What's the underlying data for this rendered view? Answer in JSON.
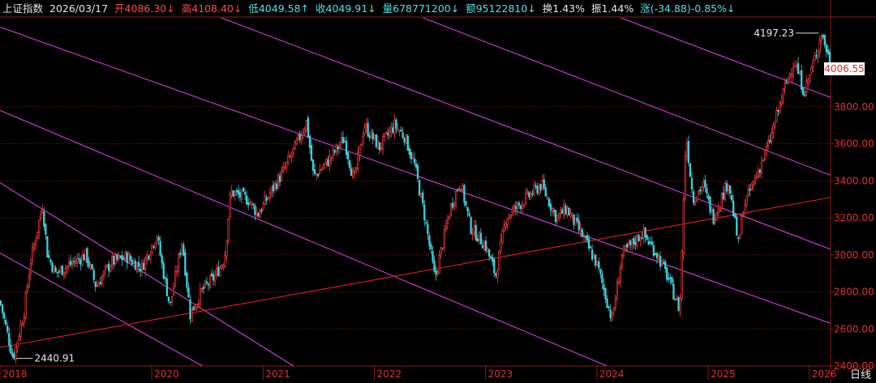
{
  "header": {
    "title": "上证指数",
    "date": "2026/03/17",
    "open": "开4086.30↓",
    "high": "高4108.40↓",
    "low": "低4049.58↑",
    "close": "收4049.91↓",
    "volume": "量678771200↓",
    "amount": "额95122810↓",
    "turnover": "换1.43%",
    "amplitude": "振1.44%",
    "change": "涨(-34.88)-0.85%↓"
  },
  "period_label": "日线",
  "current_price_label": "4006.55",
  "colors": {
    "up": "#ff3c3c",
    "down": "#3fd0dc",
    "channel": "#d040d8",
    "trendline": "#e02020",
    "grid": "#7a1818",
    "axis": "#8a1c1c"
  },
  "chart_data": {
    "type": "candlestick",
    "title": "上证指数",
    "period": "日线",
    "x_labels": [
      "2018",
      "2020",
      "2021",
      "2022",
      "2023",
      "2024",
      "2025",
      "2026"
    ],
    "x_years": [
      2018.0,
      2019.5,
      2020.6,
      2021.7,
      2022.8,
      2023.9,
      2025.0,
      2026.0
    ],
    "y_ticks": [
      2400.0,
      2600.0,
      2800.0,
      3000.0,
      3200.0,
      3400.0,
      3600.0,
      3800.0
    ],
    "ylim": [
      2400,
      4280
    ],
    "xlim": [
      2018.0,
      2026.21
    ],
    "last_price": 4006.55,
    "annotations": [
      {
        "text": "2440.91",
        "x": 2018.1,
        "y": 2440.91,
        "kind": "low"
      },
      {
        "text": "4197.23",
        "x": 2025.9,
        "y": 4197.23,
        "kind": "high"
      }
    ],
    "price_path": [
      [
        2018.0,
        2750
      ],
      [
        2018.13,
        2441
      ],
      [
        2018.24,
        2700
      ],
      [
        2018.3,
        2960
      ],
      [
        2018.42,
        3270
      ],
      [
        2018.47,
        3000
      ],
      [
        2018.55,
        2900
      ],
      [
        2018.7,
        2950
      ],
      [
        2018.85,
        3000
      ],
      [
        2018.95,
        2830
      ],
      [
        2019.1,
        2960
      ],
      [
        2019.25,
        2990
      ],
      [
        2019.4,
        2930
      ],
      [
        2019.55,
        3110
      ],
      [
        2019.6,
        2950
      ],
      [
        2019.68,
        2720
      ],
      [
        2019.8,
        3080
      ],
      [
        2019.88,
        2680
      ],
      [
        2020.0,
        2810
      ],
      [
        2020.12,
        2880
      ],
      [
        2020.22,
        2980
      ],
      [
        2020.28,
        3340
      ],
      [
        2020.45,
        3300
      ],
      [
        2020.55,
        3220
      ],
      [
        2020.7,
        3360
      ],
      [
        2020.8,
        3450
      ],
      [
        2020.95,
        3620
      ],
      [
        2021.03,
        3720
      ],
      [
        2021.1,
        3420
      ],
      [
        2021.25,
        3510
      ],
      [
        2021.4,
        3630
      ],
      [
        2021.5,
        3400
      ],
      [
        2021.6,
        3700
      ],
      [
        2021.75,
        3580
      ],
      [
        2021.9,
        3700
      ],
      [
        2022.0,
        3640
      ],
      [
        2022.1,
        3480
      ],
      [
        2022.2,
        3200
      ],
      [
        2022.3,
        2870
      ],
      [
        2022.45,
        3250
      ],
      [
        2022.55,
        3400
      ],
      [
        2022.65,
        3150
      ],
      [
        2022.8,
        3050
      ],
      [
        2022.9,
        2890
      ],
      [
        2023.0,
        3200
      ],
      [
        2023.15,
        3280
      ],
      [
        2023.35,
        3380
      ],
      [
        2023.5,
        3200
      ],
      [
        2023.6,
        3250
      ],
      [
        2023.75,
        3110
      ],
      [
        2023.9,
        2950
      ],
      [
        2024.05,
        2650
      ],
      [
        2024.15,
        3000
      ],
      [
        2024.35,
        3120
      ],
      [
        2024.5,
        3000
      ],
      [
        2024.6,
        2880
      ],
      [
        2024.72,
        2700
      ],
      [
        2024.78,
        3660
      ],
      [
        2024.85,
        3300
      ],
      [
        2024.95,
        3380
      ],
      [
        2025.05,
        3200
      ],
      [
        2025.2,
        3400
      ],
      [
        2025.3,
        3050
      ],
      [
        2025.35,
        3260
      ],
      [
        2025.5,
        3460
      ],
      [
        2025.6,
        3600
      ],
      [
        2025.75,
        3890
      ],
      [
        2025.85,
        4050
      ],
      [
        2025.95,
        3880
      ],
      [
        2026.05,
        4050
      ],
      [
        2026.12,
        4197
      ],
      [
        2026.18,
        4090
      ],
      [
        2026.21,
        4007
      ]
    ],
    "channel_lines": [
      {
        "from": [
          2018.0,
          3390
        ],
        "to": [
          2020.9,
          2400
        ]
      },
      {
        "from": [
          2018.0,
          3010
        ],
        "to": [
          2020.0,
          2400
        ]
      },
      {
        "from": [
          2018.0,
          3780
        ],
        "to": [
          2024.0,
          2400
        ]
      },
      {
        "from": [
          2018.0,
          4230
        ],
        "to": [
          2026.21,
          2630
        ]
      },
      {
        "from": [
          2019.85,
          4350
        ],
        "to": [
          2026.21,
          3030
        ]
      },
      {
        "from": [
          2021.85,
          4350
        ],
        "to": [
          2026.21,
          3430
        ]
      },
      {
        "from": [
          2023.8,
          4350
        ],
        "to": [
          2026.21,
          3850
        ]
      }
    ],
    "trend_line": {
      "from": [
        2018.0,
        2500
      ],
      "to": [
        2026.21,
        3310
      ]
    },
    "grid": true
  }
}
